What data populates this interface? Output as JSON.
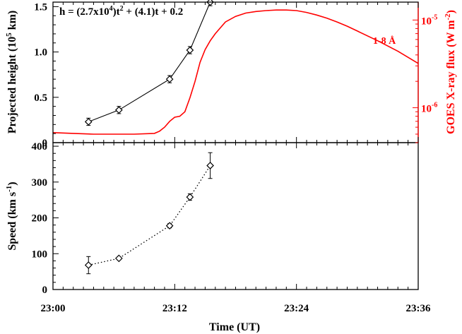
{
  "chart_data": [
    {
      "type": "line",
      "panel": "top",
      "annotation": {
        "base": "h = (2.7x10",
        "exp1": "4",
        "mid": ")t",
        "exp2": "2",
        "tail": " + (4.1)t + 0.2"
      },
      "ylabel": {
        "main": "Projected height (10",
        "exp": "5",
        "unit": " km)"
      },
      "ylim": [
        0,
        1.55
      ],
      "yticks": [
        0,
        0.5,
        1.0,
        1.5
      ],
      "ytick_labels": [
        "0",
        "0.5",
        "1.0",
        "1.5"
      ],
      "series": [
        {
          "type": "scatter",
          "x": [
            "23:03:30",
            "23:06:30",
            "23:11:30",
            "23:13:30",
            "23:15:30"
          ],
          "y": [
            0.23,
            0.36,
            0.7,
            1.02,
            1.55
          ],
          "yerr": [
            0.04,
            0.04,
            0.04,
            0.04,
            0.04
          ],
          "color": "#000000"
        }
      ],
      "secondary_axis": {
        "ylabel": {
          "main": "GOES X-ray flux (W m",
          "exp": "-2",
          "unit": ")"
        },
        "scale": "log",
        "ylim": [
          4e-07,
          1.6e-05
        ],
        "yticks": [
          1e-06,
          1e-05
        ],
        "ytick_labels": [
          {
            "base": "10",
            "exp": "-6"
          },
          {
            "base": "10",
            "exp": "-5"
          }
        ],
        "color": "#ff0000",
        "series": [
          {
            "name": "1-8 Å",
            "type": "line",
            "color": "#ff0000",
            "x": [
              "23:00:00",
              "23:02:00",
              "23:04:00",
              "23:06:00",
              "23:08:00",
              "23:10:00",
              "23:10:30",
              "23:11:00",
              "23:11:30",
              "23:12:00",
              "23:12:30",
              "23:13:00",
              "23:13:30",
              "23:14:00",
              "23:14:30",
              "23:15:00",
              "23:15:30",
              "23:16:00",
              "23:17:00",
              "23:18:00",
              "23:19:00",
              "23:20:00",
              "23:21:00",
              "23:22:00",
              "23:23:00",
              "23:24:00",
              "23:25:00",
              "23:26:00",
              "23:27:00",
              "23:28:00",
              "23:29:00",
              "23:30:00",
              "23:32:00",
              "23:34:00",
              "23:36:00"
            ],
            "y": [
              5.2e-07,
              5.1e-07,
              5e-07,
              5e-07,
              5e-07,
              5.1e-07,
              5.4e-07,
              6e-07,
              7e-07,
              7.8e-07,
              8e-07,
              9e-07,
              1.3e-06,
              2e-06,
              3.3e-06,
              4.6e-06,
              5.8e-06,
              7e-06,
              9.5e-06,
              1.1e-05,
              1.2e-05,
              1.25e-05,
              1.28e-05,
              1.3e-05,
              1.3e-05,
              1.28e-05,
              1.22e-05,
              1.14e-05,
              1.05e-05,
              9.5e-06,
              8.5e-06,
              7.5e-06,
              5.8e-06,
              4.4e-06,
              3.2e-06
            ]
          }
        ]
      }
    },
    {
      "type": "scatter",
      "panel": "bottom",
      "ylabel": {
        "main": "Speed (km s",
        "exp": "-1",
        "unit": ")"
      },
      "ylim": [
        0,
        410
      ],
      "yticks": [
        0,
        100,
        200,
        300,
        400
      ],
      "ytick_labels": [
        "0",
        "100",
        "200",
        "300",
        "400"
      ],
      "xlabel": "Time (UT)",
      "xticks": [
        "23:00",
        "23:12",
        "23:24",
        "23:36"
      ],
      "series": [
        {
          "x": [
            "23:03:30",
            "23:06:30",
            "23:11:30",
            "23:13:30",
            "23:15:30"
          ],
          "y": [
            68,
            87,
            178,
            258,
            346
          ],
          "yerr": [
            24,
            4,
            6,
            9,
            36
          ],
          "line_style": "dotted",
          "color": "#000000"
        }
      ]
    }
  ]
}
